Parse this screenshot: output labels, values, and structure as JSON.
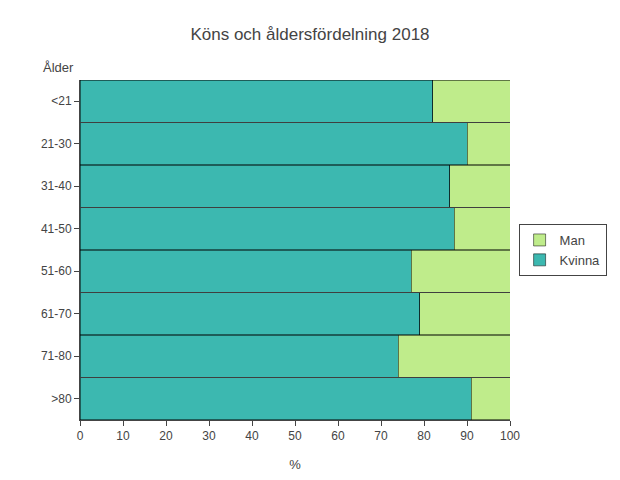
{
  "chart_data": {
    "type": "bar",
    "orientation": "horizontal",
    "stacked": true,
    "title": "Köns och åldersfördelning 2018",
    "xlabel": "%",
    "ylabel": "Ålder",
    "categories": [
      "<21",
      "21-30",
      "31-40",
      "41-50",
      "51-60",
      "61-70",
      "71-80",
      ">80"
    ],
    "series": [
      {
        "name": "Kvinna",
        "color": "#3CB8B0",
        "values": [
          82,
          90,
          86,
          87,
          77,
          79,
          74,
          91
        ]
      },
      {
        "name": "Man",
        "color": "#BFEC8B",
        "values": [
          18,
          10,
          14,
          13,
          23,
          21,
          26,
          9
        ]
      }
    ],
    "xlim": [
      0,
      100
    ],
    "xticks": [
      0,
      10,
      20,
      30,
      40,
      50,
      60,
      70,
      80,
      90,
      100
    ],
    "legend": "right",
    "grid": false
  }
}
